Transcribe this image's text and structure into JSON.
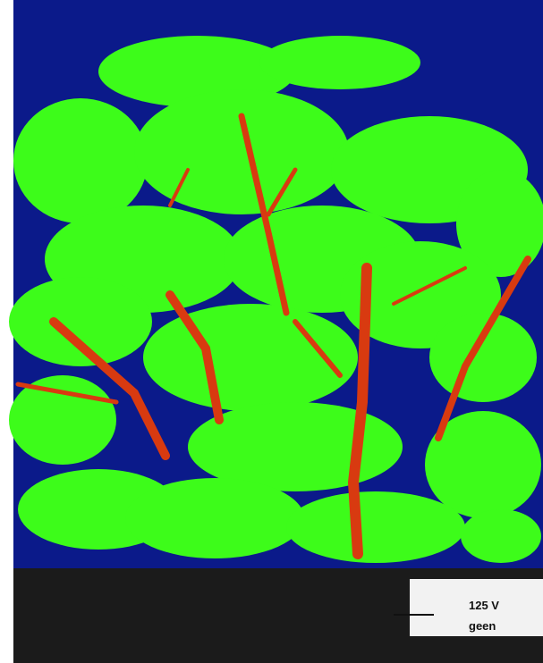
{
  "label": {
    "line1": "125 V",
    "line2": "geen"
  }
}
